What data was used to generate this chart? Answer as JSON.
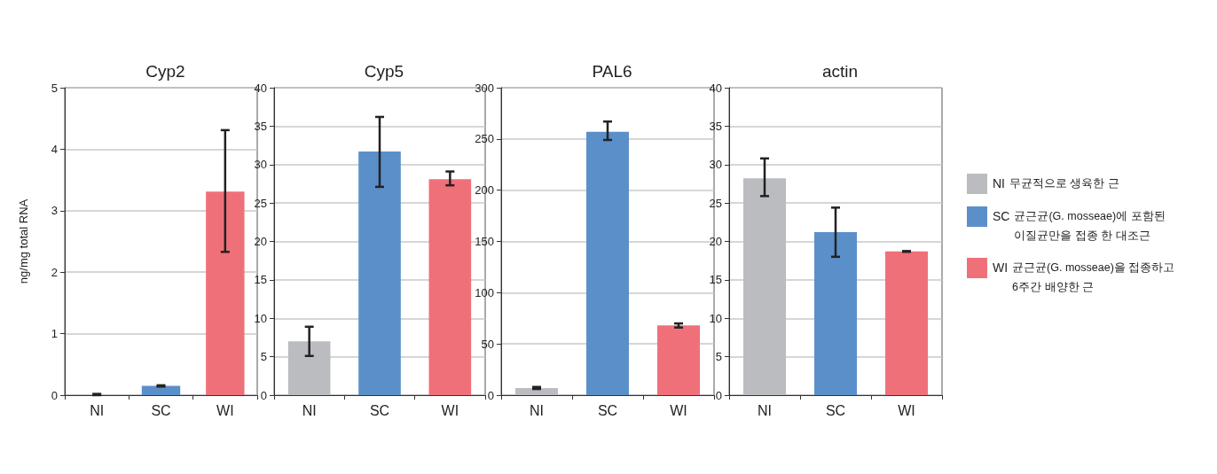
{
  "chart_data": [
    {
      "type": "bar",
      "title": "Cyp2",
      "ylabel": "ng/mg total RNA",
      "categories": [
        "NI",
        "SC",
        "WI"
      ],
      "values": [
        0.01,
        0.15,
        3.31
      ],
      "colors": [
        "#bbbcc0",
        "#5b8fc9",
        "#f0707a"
      ],
      "errors": [
        0.01,
        0.01,
        [
          2.33,
          4.31
        ]
      ],
      "ylim": [
        0,
        5
      ],
      "yticks": [
        0,
        1,
        2,
        3,
        4,
        5
      ],
      "grid": "y"
    },
    {
      "type": "bar",
      "title": "Cyp5",
      "categories": [
        "NI",
        "SC",
        "WI"
      ],
      "values": [
        7.0,
        31.7,
        28.1
      ],
      "colors": [
        "#bbbcc0",
        "#5b8fc9",
        "#f0707a"
      ],
      "errors": [
        [
          5.1,
          8.9
        ],
        [
          27.1,
          36.2
        ],
        [
          27.3,
          29.1
        ]
      ],
      "ylim": [
        0,
        40
      ],
      "yticks": [
        0,
        5,
        10,
        15,
        20,
        25,
        30,
        35,
        40
      ],
      "grid": "y"
    },
    {
      "type": "bar",
      "title": "PAL6",
      "categories": [
        "NI",
        "SC",
        "WI"
      ],
      "values": [
        7,
        257,
        68
      ],
      "colors": [
        "#bbbcc0",
        "#5b8fc9",
        "#f0707a"
      ],
      "errors": [
        1,
        [
          249,
          267
        ],
        [
          66,
          70
        ]
      ],
      "ylim": [
        0,
        300
      ],
      "yticks": [
        0,
        50,
        100,
        150,
        200,
        250,
        300
      ],
      "grid": "y"
    },
    {
      "type": "bar",
      "title": "actin",
      "categories": [
        "NI",
        "SC",
        "WI"
      ],
      "values": [
        28.2,
        21.2,
        18.7
      ],
      "colors": [
        "#bbbcc0",
        "#5b8fc9",
        "#f0707a"
      ],
      "errors": [
        [
          25.9,
          30.8
        ],
        [
          18.0,
          24.4
        ],
        0.05
      ],
      "ylim": [
        0,
        40
      ],
      "yticks": [
        0,
        5,
        10,
        15,
        20,
        25,
        30,
        35,
        40
      ],
      "grid": "y"
    },
    {
      "type": "other",
      "categories": [
        "NI",
        "SC",
        "WI"
      ],
      "colors": [
        "#bbbcc0",
        "#5b8fc9",
        "#f0707a"
      ],
      "annotations": [
        "무균적으로 생육한 근",
        "균근균(G. mosseae)에 포함된\n이질균만을 접종 한 대조근",
        "균근균(G. mosseae)을 접종하고\n6주간 배양한 근"
      ]
    }
  ]
}
